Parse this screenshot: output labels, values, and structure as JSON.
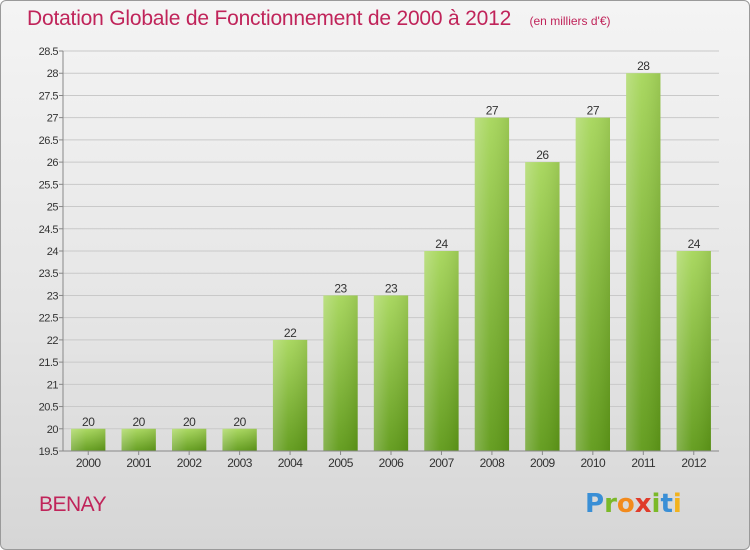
{
  "header": {
    "title": "Dotation Globale de Fonctionnement de 2000 à 2012",
    "subtitle": "(en milliers d'€)"
  },
  "footer": {
    "commune": "BENAY",
    "logo_text": "Proxiti"
  },
  "colors": {
    "title": "#c0245a",
    "bar_light": "#a6d65a",
    "bar_dark": "#5f9a18",
    "grid": "#c9c9c9",
    "axis": "#888888"
  },
  "chart_data": {
    "type": "bar",
    "title": "Dotation Globale de Fonctionnement de 2000 à 2012",
    "subtitle": "(en milliers d'€)",
    "categories": [
      "2000",
      "2001",
      "2002",
      "2003",
      "2004",
      "2005",
      "2006",
      "2007",
      "2008",
      "2009",
      "2010",
      "2011",
      "2012"
    ],
    "values": [
      20,
      20,
      20,
      20,
      22,
      23,
      23,
      24,
      27,
      26,
      27,
      28,
      24
    ],
    "data_labels": [
      "20",
      "20",
      "20",
      "20",
      "22",
      "23",
      "23",
      "24",
      "27",
      "26",
      "27",
      "28",
      "24"
    ],
    "ylim": [
      19.5,
      28.5
    ],
    "yticks": [
      "19.5",
      "20",
      "20.5",
      "21",
      "21.5",
      "22",
      "22.5",
      "23",
      "23.5",
      "24",
      "24.5",
      "25",
      "25.5",
      "26",
      "26.5",
      "27",
      "27.5",
      "28",
      "28.5"
    ],
    "xlabel": "",
    "ylabel": "",
    "grid": true,
    "legend": "none"
  }
}
